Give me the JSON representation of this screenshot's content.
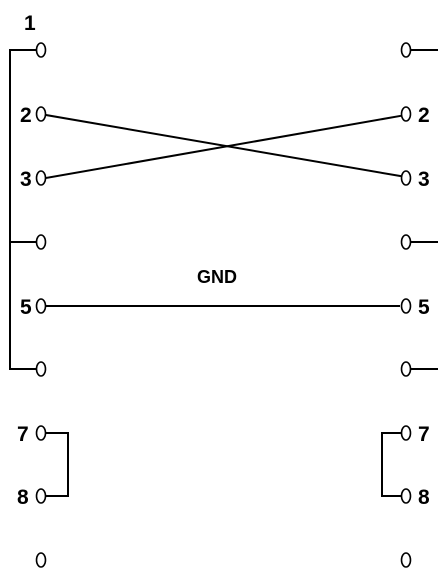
{
  "diagram": {
    "left_pins": [
      {
        "label": "1"
      },
      {
        "label": "2"
      },
      {
        "label": "3"
      },
      {
        "label": ""
      },
      {
        "label": "5"
      },
      {
        "label": ""
      },
      {
        "label": "7"
      },
      {
        "label": "8"
      },
      {
        "label": ""
      }
    ],
    "right_pins": [
      {
        "label": ""
      },
      {
        "label": "2"
      },
      {
        "label": "3"
      },
      {
        "label": ""
      },
      {
        "label": "5"
      },
      {
        "label": ""
      },
      {
        "label": "7"
      },
      {
        "label": "8"
      },
      {
        "label": ""
      }
    ],
    "gnd_label": "GND",
    "colors": {
      "line": "#000000",
      "background": "#ffffff"
    }
  }
}
